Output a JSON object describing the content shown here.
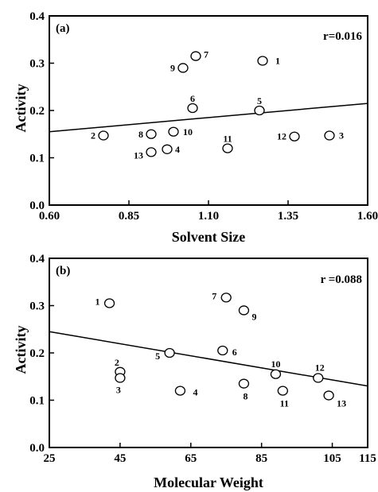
{
  "chart_data": [
    {
      "type": "scatter",
      "panel_label": "(a)",
      "annotation": "r=0.016",
      "xlabel": "Solvent Size",
      "ylabel": "Activity",
      "xlim": [
        0.6,
        1.6
      ],
      "ylim": [
        0.0,
        0.4
      ],
      "xticks": [
        "0.60",
        "0.85",
        "1.10",
        "1.35",
        "1.60"
      ],
      "yticks": [
        "0.0",
        "0.1",
        "0.2",
        "0.3",
        "0.4"
      ],
      "points": [
        {
          "label": "1",
          "x": 1.27,
          "y": 0.305
        },
        {
          "label": "2",
          "x": 0.77,
          "y": 0.147
        },
        {
          "label": "3",
          "x": 1.48,
          "y": 0.147
        },
        {
          "label": "4",
          "x": 0.97,
          "y": 0.118
        },
        {
          "label": "5",
          "x": 1.26,
          "y": 0.2
        },
        {
          "label": "6",
          "x": 1.05,
          "y": 0.205
        },
        {
          "label": "7",
          "x": 1.06,
          "y": 0.315
        },
        {
          "label": "8",
          "x": 0.92,
          "y": 0.15
        },
        {
          "label": "9",
          "x": 1.02,
          "y": 0.29
        },
        {
          "label": "10",
          "x": 0.99,
          "y": 0.155
        },
        {
          "label": "11",
          "x": 1.16,
          "y": 0.12
        },
        {
          "label": "12",
          "x": 1.37,
          "y": 0.145
        },
        {
          "label": "13",
          "x": 0.92,
          "y": 0.112
        }
      ],
      "fit_line": {
        "x": [
          0.6,
          1.6
        ],
        "y": [
          0.155,
          0.215
        ]
      },
      "grid": false
    },
    {
      "type": "scatter",
      "panel_label": "(b)",
      "annotation": "r =0.088",
      "xlabel": "Molecular Weight",
      "ylabel": "Activity",
      "xlim": [
        25,
        115
      ],
      "ylim": [
        0.0,
        0.4
      ],
      "xticks": [
        "25",
        "45",
        "65",
        "85",
        "105",
        "115"
      ],
      "yticks": [
        "0.0",
        "0.1",
        "0.2",
        "0.3",
        "0.4"
      ],
      "points": [
        {
          "label": "1",
          "x": 42,
          "y": 0.305
        },
        {
          "label": "2",
          "x": 45,
          "y": 0.16
        },
        {
          "label": "3",
          "x": 45,
          "y": 0.147
        },
        {
          "label": "4",
          "x": 62,
          "y": 0.12
        },
        {
          "label": "5",
          "x": 59,
          "y": 0.2
        },
        {
          "label": "6",
          "x": 74,
          "y": 0.205
        },
        {
          "label": "7",
          "x": 75,
          "y": 0.317
        },
        {
          "label": "8",
          "x": 80,
          "y": 0.135
        },
        {
          "label": "9",
          "x": 80,
          "y": 0.29
        },
        {
          "label": "10",
          "x": 89,
          "y": 0.155
        },
        {
          "label": "11",
          "x": 91,
          "y": 0.12
        },
        {
          "label": "12",
          "x": 101,
          "y": 0.147
        },
        {
          "label": "13",
          "x": 104,
          "y": 0.11
        }
      ],
      "fit_line": {
        "x": [
          25,
          115
        ],
        "y": [
          0.245,
          0.13
        ]
      },
      "grid": false
    }
  ]
}
